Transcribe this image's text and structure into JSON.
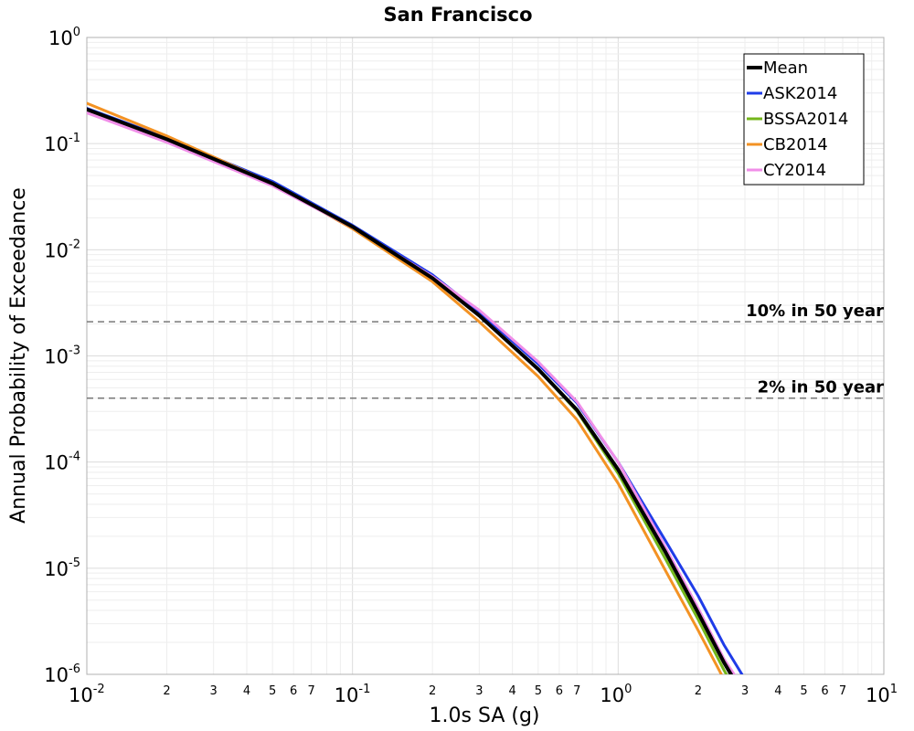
{
  "chart_data": {
    "type": "line",
    "title": "San Francisco",
    "xlabel": "1.0s SA (g)",
    "ylabel": "Annual Probability of Exceedance",
    "xscale": "log",
    "yscale": "log",
    "xlim": [
      0.01,
      10
    ],
    "ylim": [
      1e-06,
      1
    ],
    "x_major_ticks": [
      {
        "base": "10",
        "exp": "-2"
      },
      {
        "base": "10",
        "exp": "-1"
      },
      {
        "base": "10",
        "exp": "0"
      },
      {
        "base": "10",
        "exp": "1"
      }
    ],
    "y_major_ticks": [
      {
        "base": "10",
        "exp": "0"
      },
      {
        "base": "10",
        "exp": "-1"
      },
      {
        "base": "10",
        "exp": "-2"
      },
      {
        "base": "10",
        "exp": "-3"
      },
      {
        "base": "10",
        "exp": "-4"
      },
      {
        "base": "10",
        "exp": "-5"
      },
      {
        "base": "10",
        "exp": "-6"
      }
    ],
    "x_minor_tick_labels": [
      "2",
      "3",
      "4",
      "5",
      "6",
      "7"
    ],
    "grid": true,
    "legend_position": "top-right",
    "x": [
      0.01,
      0.02,
      0.05,
      0.1,
      0.2,
      0.3,
      0.5,
      0.7,
      1.0,
      1.5,
      2.0,
      2.5,
      3.0
    ],
    "series": [
      {
        "name": "Mean",
        "color": "#000000",
        "values": [
          0.21,
          0.11,
          0.042,
          0.0165,
          0.0054,
          0.0024,
          0.00075,
          0.00031,
          8.5e-05,
          1.45e-05,
          3.8e-06,
          1.3e-06,
          6e-07
        ]
      },
      {
        "name": "ASK2014",
        "color": "#1f3ce8",
        "values": [
          0.215,
          0.113,
          0.044,
          0.017,
          0.0058,
          0.0026,
          0.00084,
          0.00036,
          0.0001,
          1.85e-05,
          5.5e-06,
          1.9e-06,
          9e-07
        ]
      },
      {
        "name": "BSSA2014",
        "color": "#74b61b",
        "values": [
          0.21,
          0.11,
          0.042,
          0.0163,
          0.0054,
          0.0024,
          0.00075,
          0.0003,
          7.8e-05,
          1.25e-05,
          3.3e-06,
          1.1e-06,
          5e-07
        ]
      },
      {
        "name": "CB2014",
        "color": "#f39223",
        "values": [
          0.24,
          0.118,
          0.042,
          0.0158,
          0.005,
          0.0021,
          0.00064,
          0.00025,
          6.3e-05,
          9.7e-06,
          2.6e-06,
          9e-07,
          4.5e-07
        ]
      },
      {
        "name": "CY2014",
        "color": "#f08ee8",
        "values": [
          0.195,
          0.103,
          0.04,
          0.0163,
          0.0056,
          0.0027,
          0.00088,
          0.00037,
          0.0001,
          1.6e-05,
          4.2e-06,
          1.4e-06,
          7e-07
        ]
      }
    ],
    "reference_lines": [
      {
        "label": "10% in 50 year",
        "y": 0.0021
      },
      {
        "label": "2% in 50 year",
        "y": 0.0004
      }
    ]
  }
}
